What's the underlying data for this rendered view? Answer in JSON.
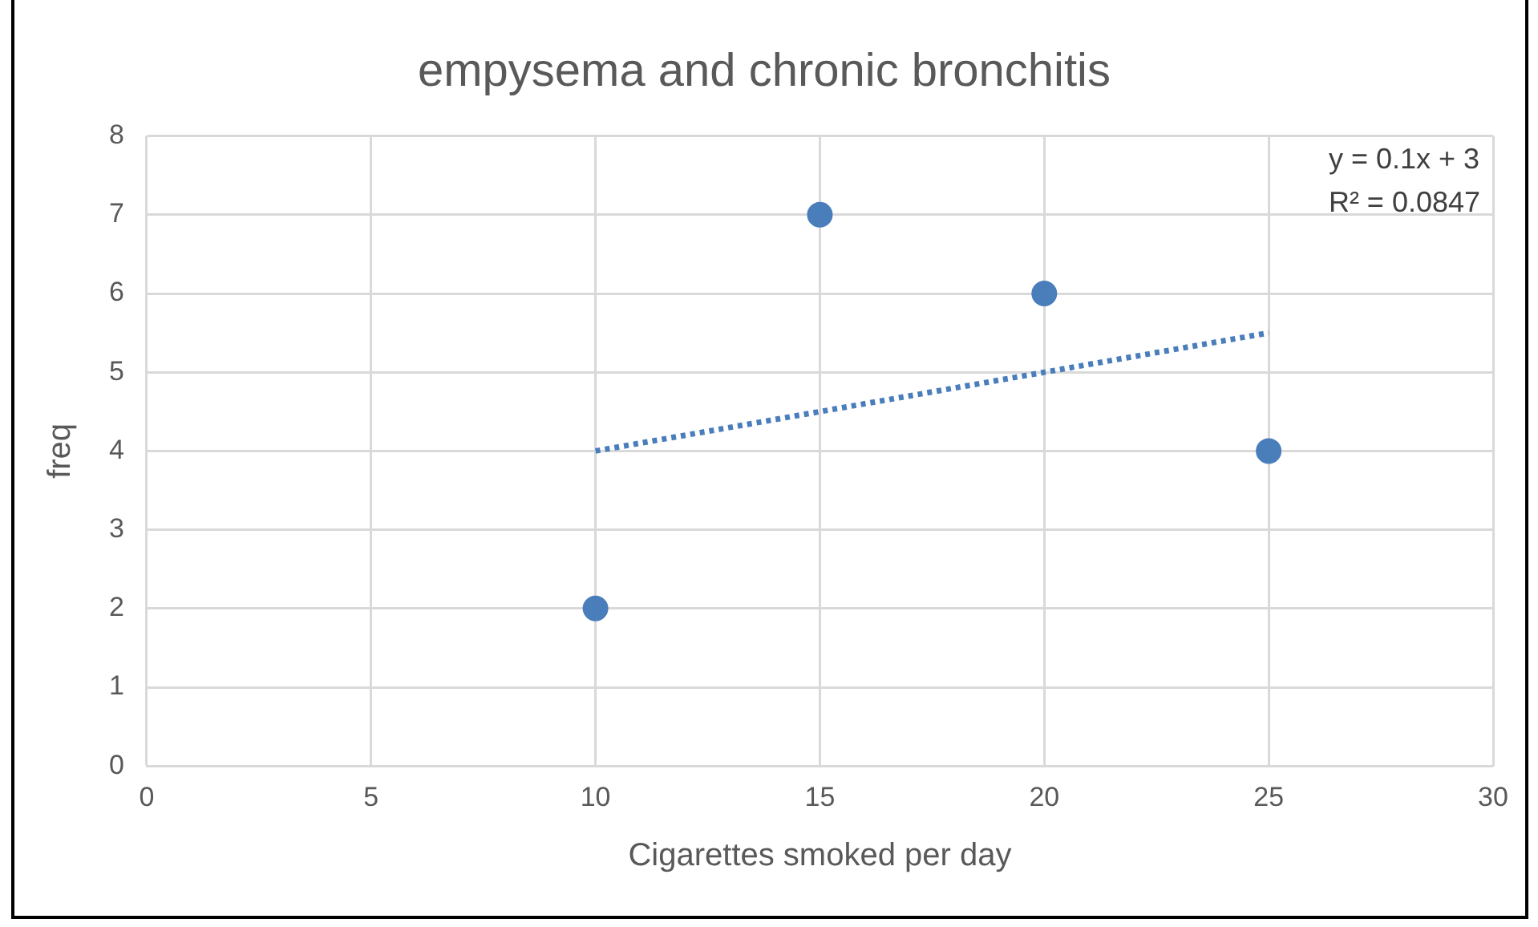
{
  "chart_data": {
    "type": "scatter",
    "title": "empysema and chronic bronchitis",
    "xlabel": "Cigarettes smoked per day",
    "ylabel": "freq",
    "series": [
      {
        "type": "scatter",
        "color": "#4a7ebb",
        "x": [
          10,
          15,
          20,
          25
        ],
        "values": [
          2,
          7,
          6,
          4
        ],
        "marker": "circle"
      },
      {
        "type": "line",
        "color": "#4a7ebb",
        "x": [
          10,
          25
        ],
        "values": [
          4,
          5.5
        ],
        "line_style": "dotted",
        "marker": "none"
      }
    ],
    "xlim": [
      0,
      30
    ],
    "xticks": [
      0,
      5,
      10,
      15,
      20,
      25,
      30
    ],
    "ylim": [
      0,
      8
    ],
    "yticks": [
      0,
      1,
      2,
      3,
      4,
      5,
      6,
      7,
      8
    ],
    "grid": true,
    "legend": false,
    "annotations": [
      "y = 0.1x + 3",
      "R² = 0.0847"
    ]
  }
}
